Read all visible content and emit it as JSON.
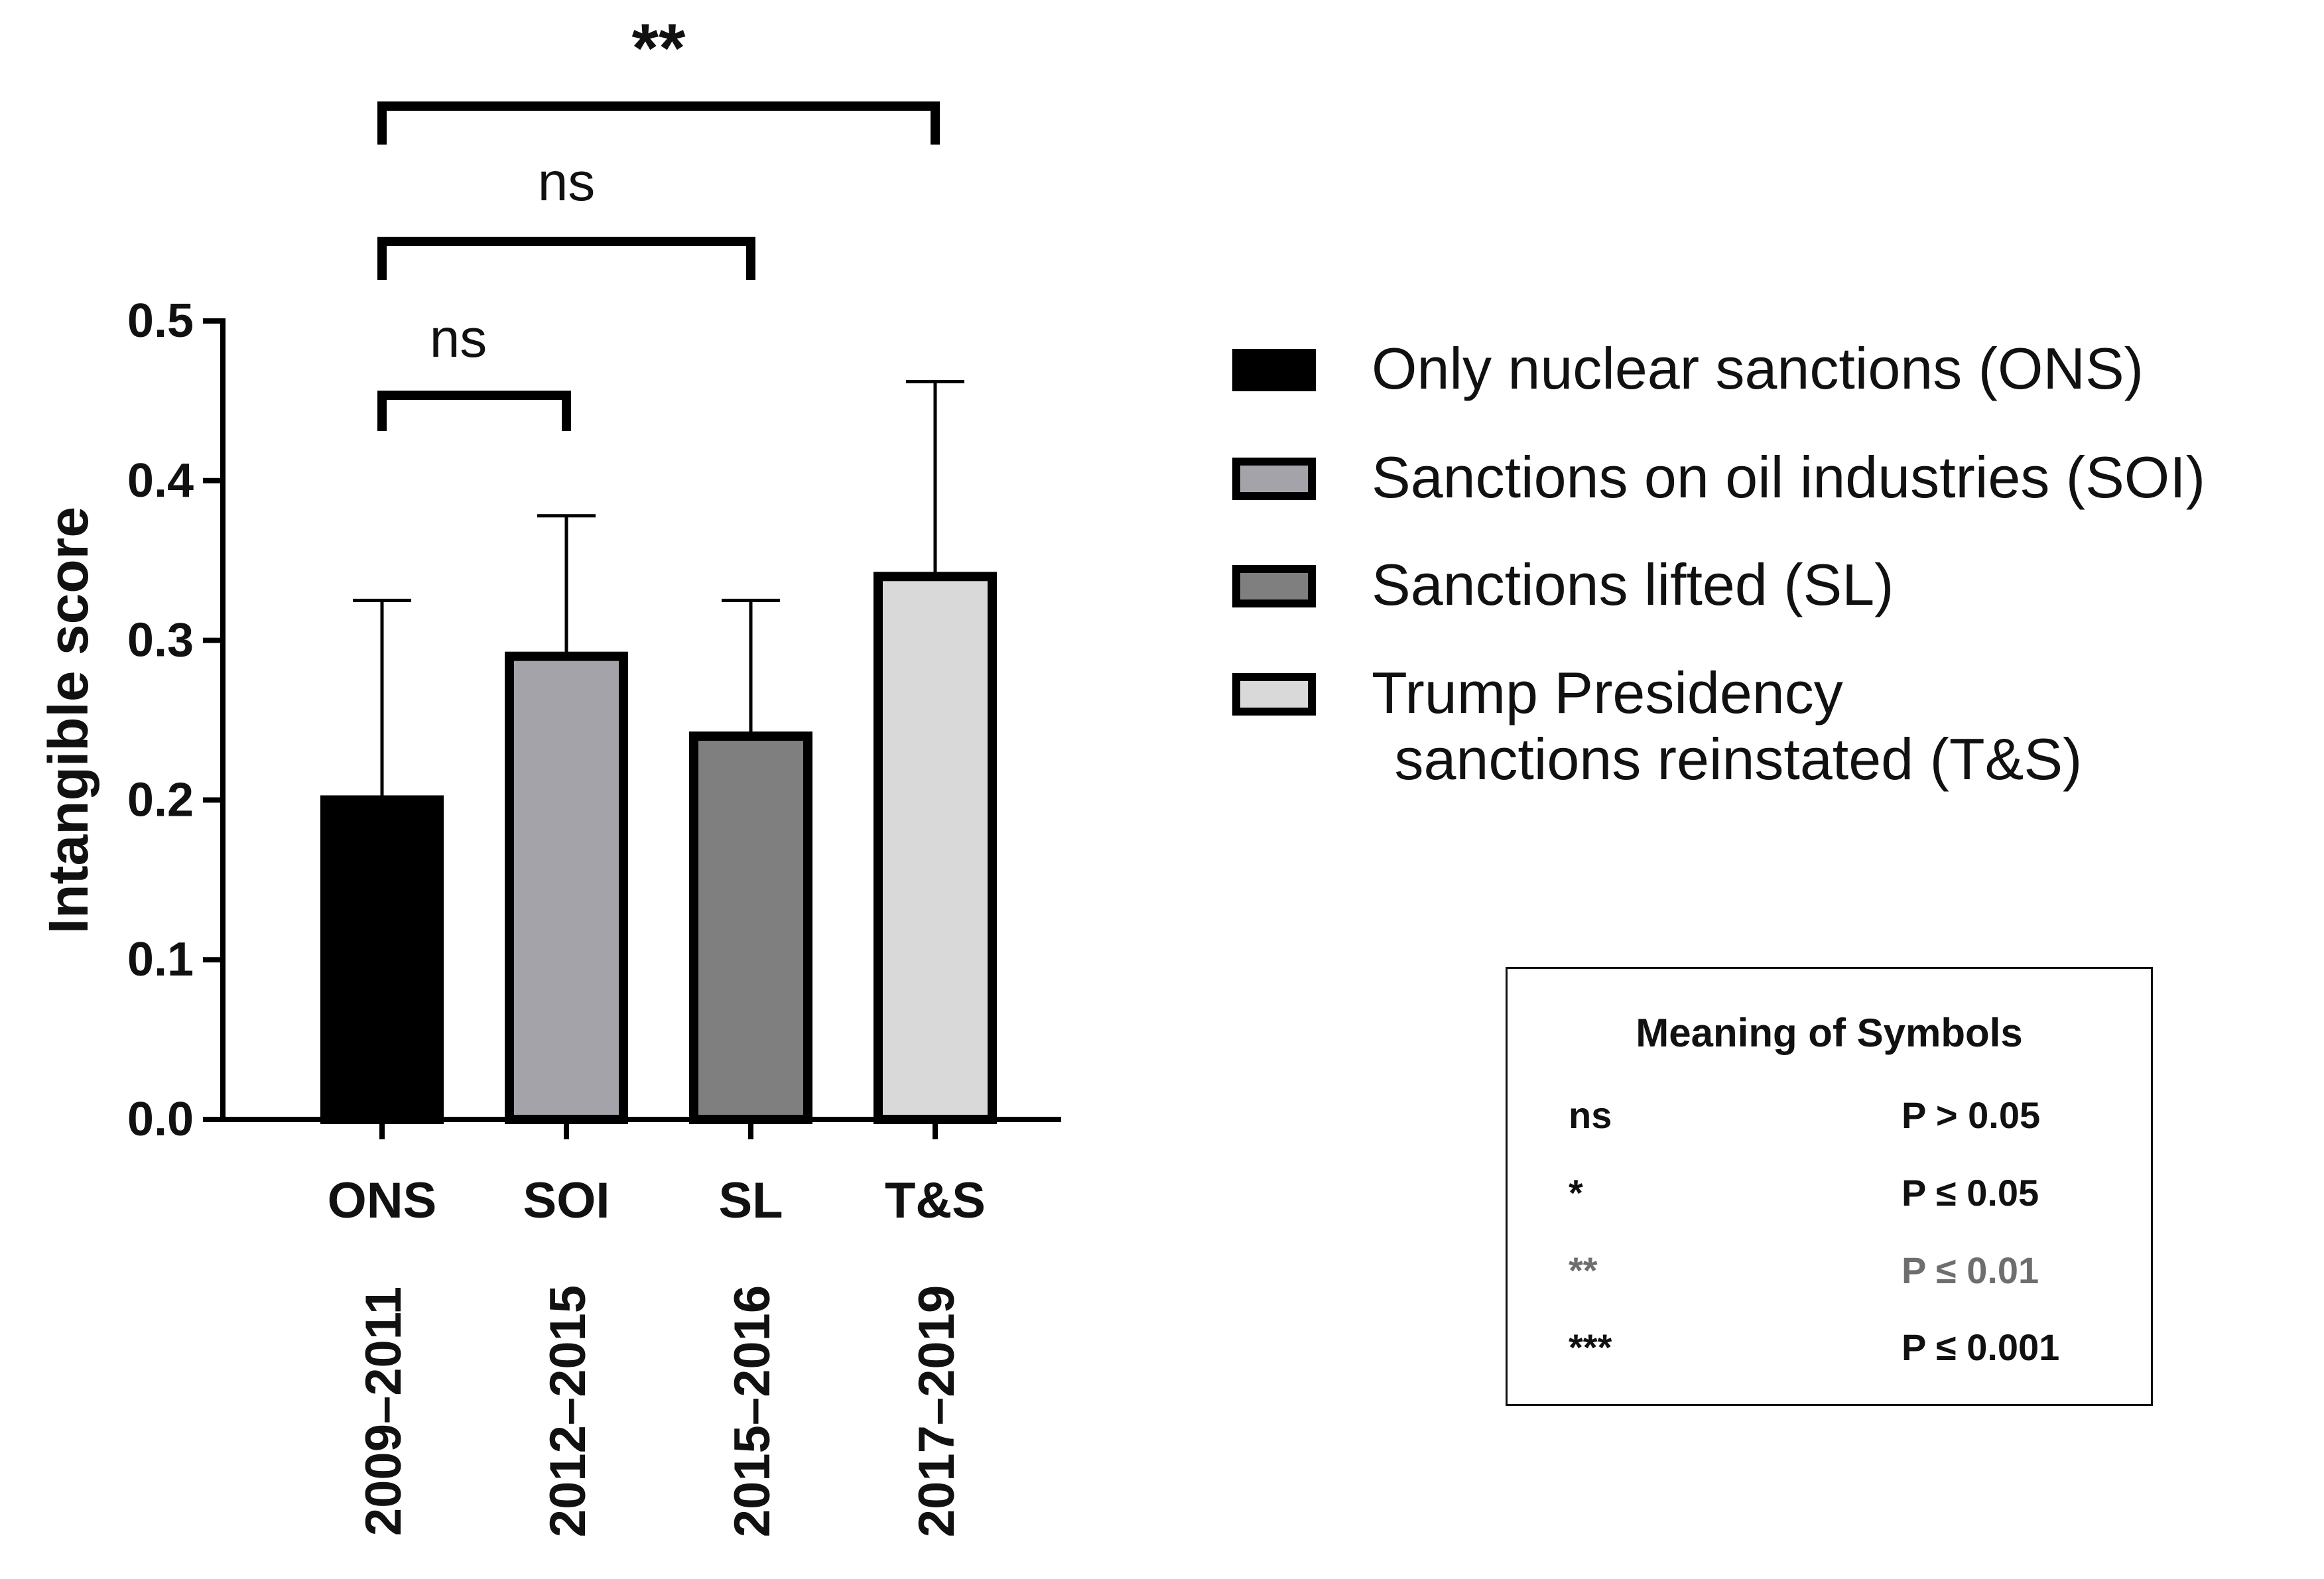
{
  "chart_data": {
    "type": "bar",
    "ylabel": "Intangible score",
    "ylim": [
      0,
      0.5
    ],
    "yticks": [
      0.0,
      0.1,
      0.2,
      0.3,
      0.4,
      0.5
    ],
    "ytick_labels": [
      "0.0",
      "0.1",
      "0.2",
      "0.3",
      "0.4",
      "0.5"
    ],
    "categories": [
      "ONS",
      "SOI",
      "SL",
      "T&S"
    ],
    "periods": [
      "2009–2011",
      "2012–2015",
      "2015–2016",
      "2017–2019"
    ],
    "values": [
      0.2,
      0.29,
      0.24,
      0.34
    ],
    "error_upper": [
      0.325,
      0.378,
      0.325,
      0.462
    ],
    "colors": [
      "#000000",
      "#a4a3a9",
      "#7f7f7f",
      "#d9d9d9"
    ],
    "legend": [
      "Only nuclear sanctions (ONS)",
      "Sanctions on oil industries (SOI)",
      "Sanctions lifted (SL)",
      "Trump Presidency\n sanctions reinstated (T&S)"
    ],
    "legend_position": "right",
    "significance": [
      {
        "from": "ONS",
        "to": "SOI",
        "label": "ns"
      },
      {
        "from": "ONS",
        "to": "SL",
        "label": "ns"
      },
      {
        "from": "ONS",
        "to": "T&S",
        "label": "**"
      }
    ]
  },
  "symbols_table": {
    "title": "Meaning of Symbols",
    "rows": [
      {
        "symbol": "ns",
        "meaning": "P > 0.05"
      },
      {
        "symbol": "*",
        "meaning": "P ≤ 0.05"
      },
      {
        "symbol": "**",
        "meaning": "P ≤ 0.01"
      },
      {
        "symbol": "***",
        "meaning": "P ≤ 0.001"
      }
    ]
  }
}
